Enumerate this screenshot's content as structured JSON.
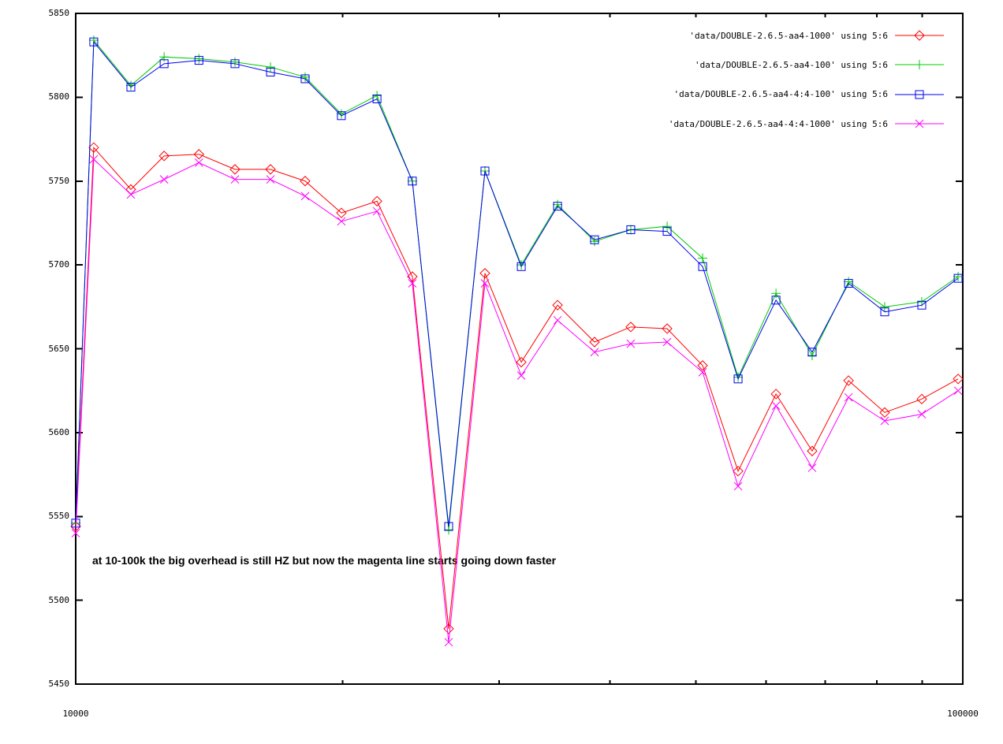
{
  "chart_data": {
    "type": "line",
    "title": "",
    "xlabel": "",
    "ylabel": "",
    "x_scale": "log10",
    "xlim": [
      10000,
      100000
    ],
    "ylim": [
      5450,
      5850
    ],
    "grid": false,
    "legend_position": "top-right",
    "yticks": [
      5450,
      5500,
      5550,
      5600,
      5650,
      5700,
      5750,
      5800,
      5850
    ],
    "xtick_labels": [
      "10000",
      "100000"
    ],
    "x_minor_ticks": [
      20000,
      30000,
      40000,
      50000,
      60000,
      70000,
      80000,
      90000
    ],
    "x": [
      10000,
      10480,
      11540,
      12580,
      13770,
      15120,
      16580,
      18140,
      19930,
      21860,
      23960,
      26330,
      28930,
      31790,
      34930,
      38450,
      42240,
      46420,
      50900,
      55810,
      61580,
      67640,
      74340,
      81660,
      89900,
      98790
    ],
    "series": [
      {
        "name": "aa4-1000",
        "label": "'data/DOUBLE-2.6.5-aa4-1000' using 5:6",
        "color": "#ff0000",
        "marker": "diamond",
        "values": [
          5544,
          5770,
          5745,
          5765,
          5766,
          5757,
          5757,
          5750,
          5731,
          5738,
          5693,
          5483,
          5695,
          5642,
          5676,
          5654,
          5663,
          5662,
          5640,
          5577,
          5623,
          5589,
          5631,
          5612,
          5620,
          5632
        ]
      },
      {
        "name": "aa4-100",
        "label": "'data/DOUBLE-2.6.5-aa4-100' using 5:6",
        "color": "#00cc00",
        "marker": "plus",
        "values": [
          5546,
          5834,
          5807,
          5824,
          5823,
          5821,
          5818,
          5812,
          5790,
          5801,
          5750,
          5542,
          5756,
          5700,
          5736,
          5714,
          5721,
          5723,
          5704,
          5633,
          5683,
          5646,
          5690,
          5675,
          5678,
          5693
        ]
      },
      {
        "name": "aa4-4:4-100",
        "label": "'data/DOUBLE-2.6.5-aa4-4:4-100' using 5:6",
        "color": "#0000ee",
        "marker": "square",
        "values": [
          5546,
          5833,
          5806,
          5820,
          5822,
          5820,
          5815,
          5811,
          5789,
          5799,
          5750,
          5544,
          5756,
          5699,
          5735,
          5715,
          5721,
          5720,
          5699,
          5632,
          5679,
          5648,
          5689,
          5672,
          5676,
          5692
        ]
      },
      {
        "name": "aa4-4:4-1000",
        "label": "'data/DOUBLE-2.6.5-aa4-4:4-1000' using 5:6",
        "color": "#ff00ff",
        "marker": "x",
        "values": [
          5540,
          5763,
          5742,
          5751,
          5761,
          5751,
          5751,
          5741,
          5726,
          5732,
          5689,
          5475,
          5689,
          5634,
          5667,
          5648,
          5653,
          5654,
          5636,
          5568,
          5616,
          5579,
          5621,
          5607,
          5611,
          5625
        ]
      }
    ],
    "annotation": {
      "text": "at 10-100k the big overhead is still HZ but now the magenta line starts going down faster"
    },
    "axis_color": "#000000"
  }
}
